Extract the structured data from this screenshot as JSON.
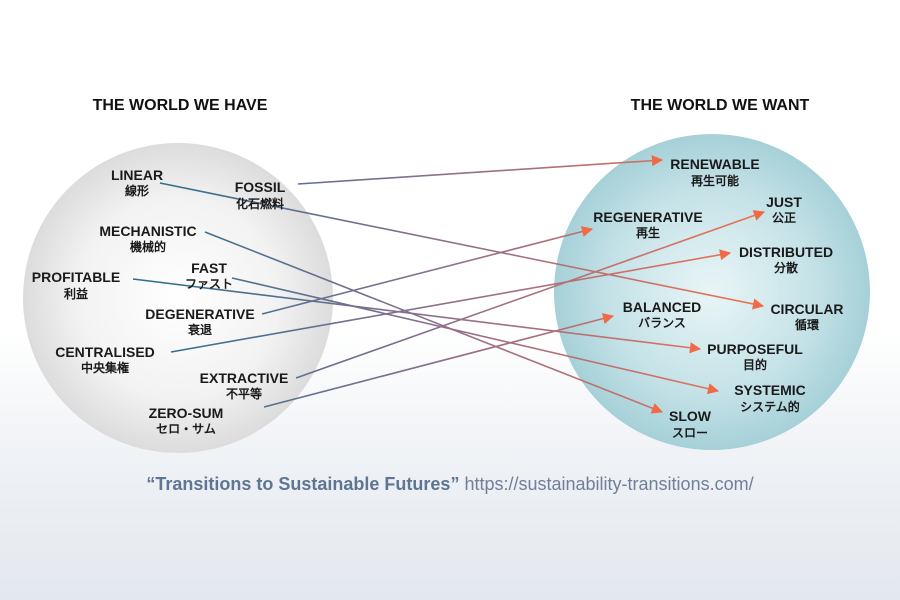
{
  "headings": {
    "left": "THE WORLD WE HAVE",
    "right": "THE WORLD WE WANT"
  },
  "left": {
    "linear": {
      "en": "LINEAR",
      "jp": "線形"
    },
    "fossil": {
      "en": "FOSSIL",
      "jp": "化石燃料"
    },
    "mechanistic": {
      "en": "MECHANISTIC",
      "jp": "機械的"
    },
    "profitable": {
      "en": "PROFITABLE",
      "jp": "利益"
    },
    "fast": {
      "en": "FAST",
      "jp": "ファスト"
    },
    "degenerative": {
      "en": "DEGENERATIVE",
      "jp": "衰退"
    },
    "centralised": {
      "en": "CENTRALISED",
      "jp": "中央集権"
    },
    "extractive": {
      "en": "EXTRACTIVE",
      "jp": "不平等"
    },
    "zerosum": {
      "en": "ZERO-SUM",
      "jp": "セロ・サム"
    }
  },
  "right": {
    "renewable": {
      "en": "RENEWABLE",
      "jp": "再生可能"
    },
    "just": {
      "en": "JUST",
      "jp": "公正"
    },
    "regenerative": {
      "en": "REGENERATIVE",
      "jp": "再生"
    },
    "distributed": {
      "en": "DISTRIBUTED",
      "jp": "分散"
    },
    "balanced": {
      "en": "BALANCED",
      "jp": "バランス"
    },
    "circular": {
      "en": "CIRCULAR",
      "jp": "循環"
    },
    "purposeful": {
      "en": "PURPOSEFUL",
      "jp": "目的"
    },
    "systemic": {
      "en": "SYSTEMIC",
      "jp": "システム的"
    },
    "slow": {
      "en": "SLOW",
      "jp": "スロー"
    }
  },
  "colors": {
    "left_circle": "#e8e8e8",
    "right_circle": "#b9dde3",
    "arrow_start": "#2f6f8c",
    "arrow_end": "#f07350"
  },
  "footer": {
    "title": "“Transitions to Sustainable Futures”",
    "url": "https://sustainability-transitions.com/"
  }
}
